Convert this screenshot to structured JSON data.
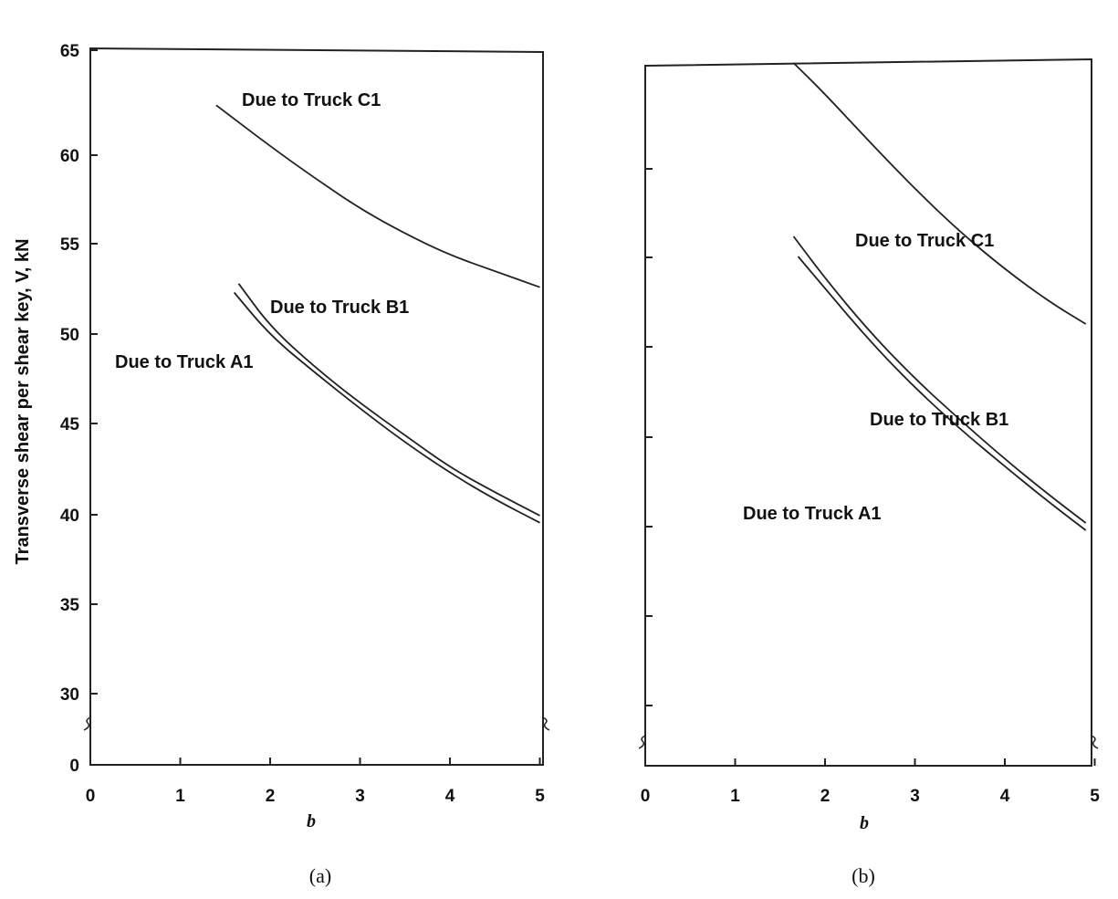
{
  "chart_data": [
    {
      "type": "line",
      "caption": "(a)",
      "xlabel": "b",
      "ylabel": "Transverse shear per shear key, V, kN",
      "xlim": [
        0,
        5
      ],
      "x_ticks": [
        "0",
        "1",
        "2",
        "3",
        "4",
        "5"
      ],
      "y_ticks": [
        "0",
        "30",
        "35",
        "40",
        "45",
        "50",
        "55",
        "60",
        "65"
      ],
      "axis_break": "y between 0 and 30",
      "ylim": [
        26,
        65
      ],
      "series": [
        {
          "name": "Due to Truck C1",
          "x": [
            1.4,
            2,
            2.5,
            3,
            3.5,
            4,
            4.5,
            5
          ],
          "y": [
            62.8,
            60.5,
            58.7,
            57.0,
            55.6,
            54.4,
            53.5,
            52.6
          ]
        },
        {
          "name": "Due to Truck B1",
          "x": [
            1.65,
            2,
            2.5,
            3,
            3.5,
            4,
            4.5,
            5
          ],
          "y": [
            52.8,
            50.4,
            48.1,
            46.1,
            44.3,
            42.5,
            41.1,
            39.8
          ]
        },
        {
          "name": "Due to Truck A1",
          "x": [
            1.6,
            2,
            2.5,
            3,
            3.5,
            4,
            4.5,
            5
          ],
          "y": [
            52.3,
            49.9,
            47.8,
            45.8,
            43.9,
            42.2,
            40.7,
            39.4
          ]
        }
      ]
    },
    {
      "type": "line",
      "caption": "(b)",
      "xlabel": "b",
      "xlim": [
        0,
        5
      ],
      "x_ticks": [
        "0",
        "1",
        "2",
        "3",
        "4",
        "5"
      ],
      "axis_break": "y near bottom",
      "series": [
        {
          "name": "Due to Truck C1",
          "x": [
            1.65,
            2,
            2.5,
            3,
            3.5,
            4,
            4.5,
            4.9
          ],
          "y": [
            0.77,
            0.736,
            0.683,
            0.632,
            0.585,
            0.544,
            0.508,
            0.484
          ]
        },
        {
          "name": "Due to Truck B1",
          "x": [
            1.65,
            2,
            2.5,
            3,
            3.5,
            4,
            4.5,
            4.9
          ],
          "y": [
            0.58,
            0.534,
            0.475,
            0.424,
            0.379,
            0.336,
            0.296,
            0.266
          ]
        },
        {
          "name": "Due to Truck A1",
          "x": [
            1.7,
            2,
            2.5,
            3,
            3.5,
            4,
            4.5,
            4.9
          ],
          "y": [
            0.558,
            0.523,
            0.465,
            0.414,
            0.369,
            0.328,
            0.288,
            0.258
          ]
        }
      ]
    }
  ]
}
